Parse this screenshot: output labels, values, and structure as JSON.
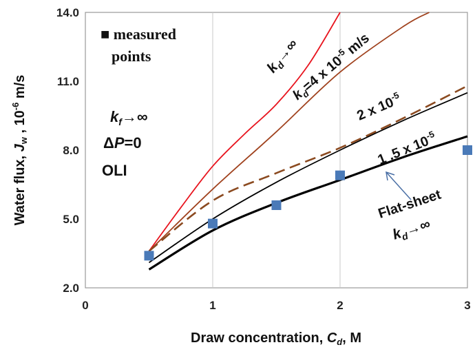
{
  "chart_data": {
    "type": "line",
    "xlabel": {
      "prefix": "Draw concentration,  ",
      "var": "C",
      "sub": "d",
      "suffix": ", M"
    },
    "ylabel": {
      "prefix": "Water flux, ",
      "var": "J",
      "sub": "w",
      "mid": " , 10",
      "sup": "-6",
      "suffix": " m/s"
    },
    "xlim": [
      0,
      3
    ],
    "ylim": [
      2,
      14
    ],
    "x_ticks": [
      "0",
      "1",
      "2",
      "3"
    ],
    "y_ticks": [
      "2.0",
      "5.0",
      "8.0",
      "11.0",
      "14.0"
    ],
    "x_tick_values": [
      0,
      1,
      2,
      3
    ],
    "y_tick_values": [
      2,
      5,
      8,
      11,
      14
    ],
    "grid": "vertical",
    "series": [
      {
        "name": "kd -> infinity",
        "color": "#e8141e",
        "style": "solid",
        "x": [
          0.5,
          0.75,
          1.0,
          1.25,
          1.5,
          1.75,
          2.0
        ],
        "y": [
          3.6,
          5.5,
          7.3,
          8.7,
          10.0,
          11.7,
          14.0
        ]
      },
      {
        "name": "kd = 4 x 10^-5 m/s",
        "color": "#a0421e",
        "style": "solid",
        "x": [
          0.5,
          1.0,
          1.5,
          2.0,
          2.5,
          2.7
        ],
        "y": [
          3.6,
          6.3,
          8.8,
          11.4,
          13.4,
          14.0
        ]
      },
      {
        "name": "2 x 10^-5",
        "color": "#000000",
        "style": "solid",
        "x": [
          0.5,
          1.0,
          1.5,
          2.0,
          2.5,
          3.0
        ],
        "y": [
          3.1,
          5.0,
          6.6,
          8.0,
          9.3,
          10.5
        ]
      },
      {
        "name": "dashed",
        "color": "#8b4a20",
        "style": "dashed",
        "x": [
          0.5,
          1.0,
          1.5,
          2.0,
          2.5,
          3.0
        ],
        "y": [
          3.6,
          5.8,
          7.0,
          8.1,
          9.4,
          10.8
        ]
      },
      {
        "name": "1.5 x 10^-5",
        "color": "#000000",
        "style": "solid-thick",
        "x": [
          0.5,
          1.0,
          1.5,
          2.0,
          2.5,
          3.0
        ],
        "y": [
          2.8,
          4.5,
          5.7,
          6.7,
          7.7,
          8.6
        ]
      },
      {
        "name": "measured points",
        "color": "#4a7ab8",
        "style": "markers",
        "x": [
          0.5,
          1.0,
          1.5,
          2.0,
          3.0
        ],
        "y": [
          3.4,
          4.8,
          5.6,
          6.9,
          8.0
        ]
      }
    ],
    "annotations": {
      "legend": "■ measured",
      "legend2": "points",
      "kd_inf_top": {
        "var": "k",
        "sub": "d",
        "arrow": "→∞"
      },
      "kd_4": {
        "var": "k",
        "sub": "d",
        "eq": "=4 x 10",
        "sup": "-5",
        "unit": " m/s"
      },
      "two": {
        "text": "2 x 10",
        "sup": "-5"
      },
      "one_five": {
        "text": "1 .5 x 10",
        "sup": "-5"
      },
      "kf": {
        "var": "k",
        "sub": "f",
        "arrow": "→∞"
      },
      "dp": {
        "text": "Δ",
        "var": "P",
        "eq": "=0"
      },
      "oli": "OLI",
      "flat_sheet": "Flat-sheet",
      "kd_inf_bottom": {
        "var": "k",
        "sub": "d",
        "arrow": "→∞"
      }
    }
  }
}
